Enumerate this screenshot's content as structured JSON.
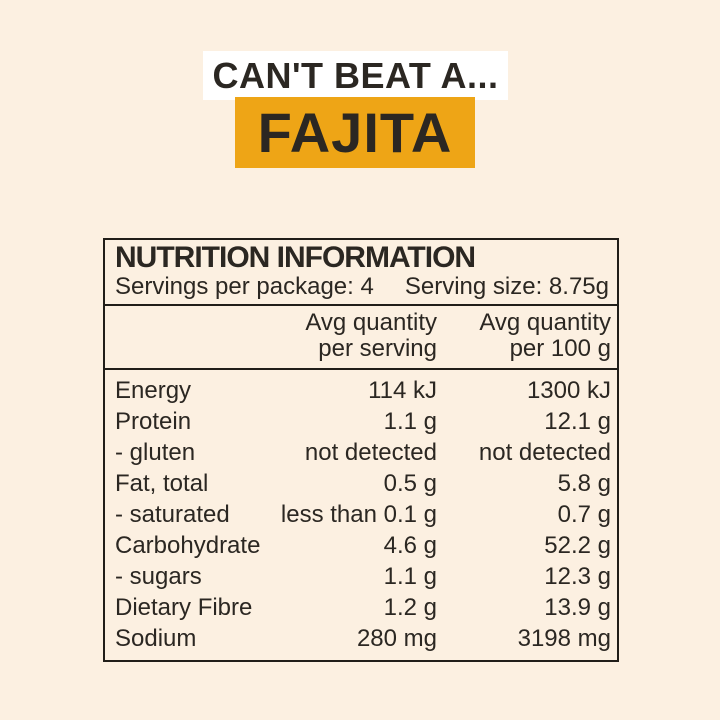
{
  "colors": {
    "background": "#fcf0e1",
    "banner_bg": "#ffffff",
    "product_bg": "#eea516",
    "ink": "#2b2722",
    "border": "#211e19"
  },
  "header": {
    "tagline": "CAN'T BEAT A...",
    "product": "FAJITA"
  },
  "nutrition": {
    "title": "NUTRITION INFORMATION",
    "servings_per_package": "Servings per package: 4",
    "serving_size": "Serving size: 8.75g",
    "columns": {
      "per_serving": [
        "Avg quantity",
        "per serving"
      ],
      "per_100g": [
        "Avg quantity",
        "per 100 g"
      ]
    },
    "rows": [
      {
        "label": "Energy",
        "per_serving": "114 kJ",
        "per_100g": "1300 kJ"
      },
      {
        "label": "Protein",
        "per_serving": "1.1 g",
        "per_100g": "12.1 g"
      },
      {
        "label": "- gluten",
        "per_serving": "not detected",
        "per_100g": "not detected"
      },
      {
        "label": "Fat, total",
        "per_serving": "0.5 g",
        "per_100g": "5.8 g"
      },
      {
        "label": "- saturated",
        "per_serving": "less than 0.1 g",
        "per_100g": "0.7 g"
      },
      {
        "label": "Carbohydrate",
        "per_serving": "4.6 g",
        "per_100g": "52.2 g"
      },
      {
        "label": "- sugars",
        "per_serving": "1.1 g",
        "per_100g": "12.3 g"
      },
      {
        "label": "Dietary Fibre",
        "per_serving": "1.2 g",
        "per_100g": "13.9 g"
      },
      {
        "label": "Sodium",
        "per_serving": "280 mg",
        "per_100g": "3198 mg"
      }
    ]
  }
}
